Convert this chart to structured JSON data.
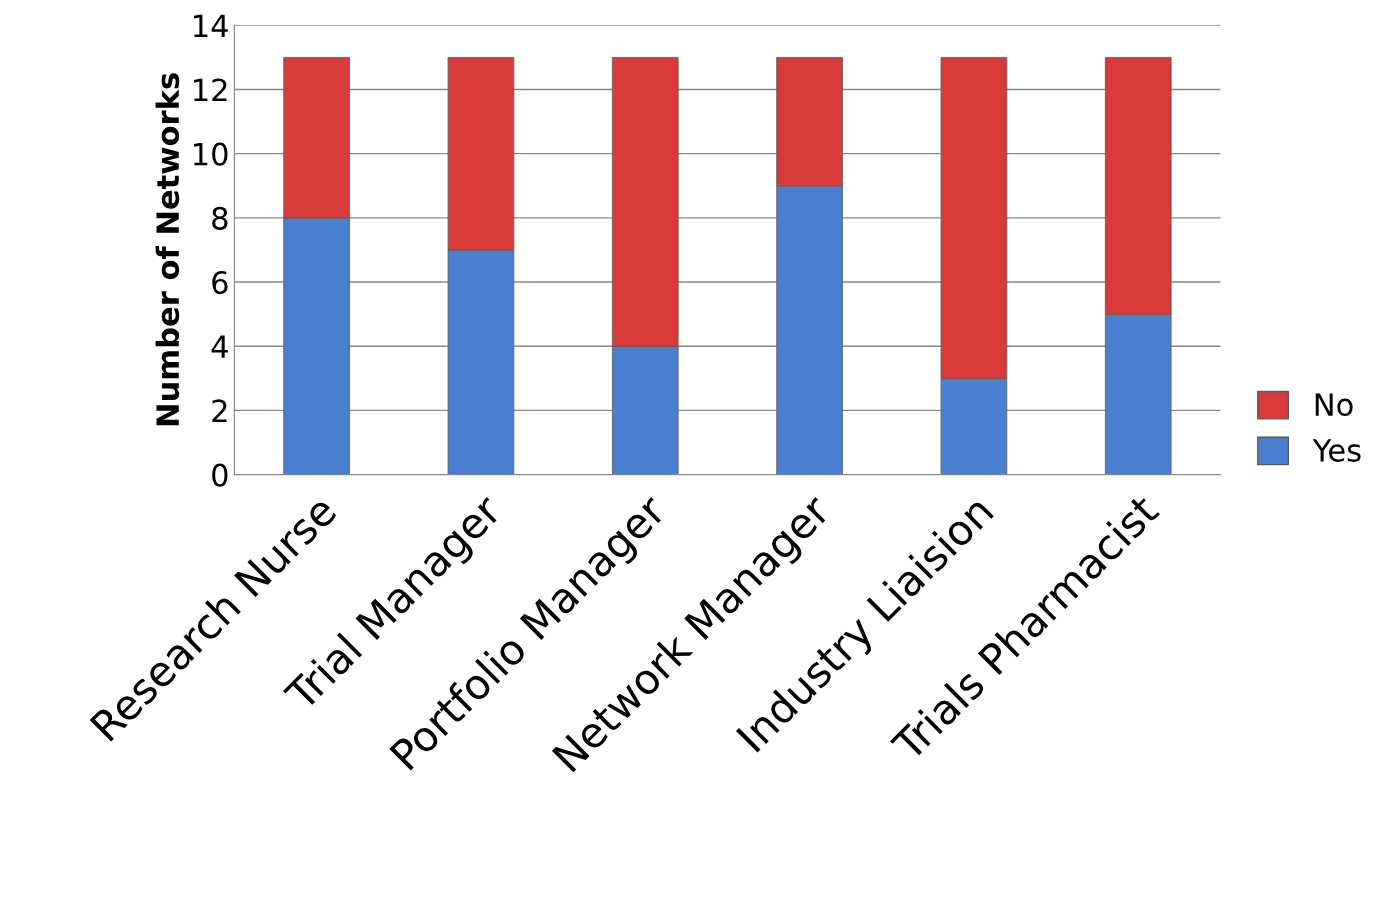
{
  "chart_data": {
    "type": "bar",
    "stacked": true,
    "categories": [
      "Research Nurse",
      "Trial Manager",
      "Portfolio Manager",
      "Network Manager",
      "Industry Liaision",
      "Trials Pharmacist"
    ],
    "series": [
      {
        "name": "Yes",
        "color": "#4a7fd0",
        "values": [
          8,
          7,
          4,
          9,
          3,
          5
        ]
      },
      {
        "name": "No",
        "color": "#d93b3b",
        "values": [
          5,
          6,
          9,
          4,
          10,
          8
        ]
      }
    ],
    "ylabel": "Number of Networks",
    "ylim": [
      0,
      14
    ],
    "yticks": [
      0,
      2,
      4,
      6,
      8,
      10,
      12,
      14
    ],
    "grid": "y",
    "legend": "right"
  }
}
